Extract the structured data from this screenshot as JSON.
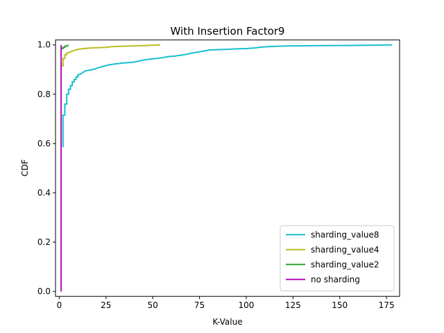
{
  "chart_data": {
    "type": "line",
    "title": "With Insertion Factor9",
    "xlabel": "K-Value",
    "ylabel": "CDF",
    "xlim": [
      -2,
      182
    ],
    "ylim": [
      -0.02,
      1.02
    ],
    "xticks": [
      0,
      25,
      50,
      75,
      100,
      125,
      150,
      175
    ],
    "yticks": [
      0.0,
      0.2,
      0.4,
      0.6,
      0.8,
      1.0
    ],
    "xtick_labels": [
      "0",
      "25",
      "50",
      "75",
      "100",
      "125",
      "150",
      "175"
    ],
    "ytick_labels": [
      "0.0",
      "0.2",
      "0.4",
      "0.6",
      "0.8",
      "1.0"
    ],
    "grid": false,
    "legend_position": "lower-right",
    "series": [
      {
        "name": "sharding_value8",
        "color": "#17becf",
        "points": [
          [
            2,
            0.585
          ],
          [
            2,
            0.715
          ],
          [
            3,
            0.715
          ],
          [
            3,
            0.76
          ],
          [
            4,
            0.76
          ],
          [
            4,
            0.8
          ],
          [
            5,
            0.8
          ],
          [
            5,
            0.82
          ],
          [
            6,
            0.82
          ],
          [
            6,
            0.835
          ],
          [
            7,
            0.835
          ],
          [
            7,
            0.85
          ],
          [
            8,
            0.85
          ],
          [
            8,
            0.86
          ],
          [
            9,
            0.86
          ],
          [
            9,
            0.87
          ],
          [
            10,
            0.87
          ],
          [
            10,
            0.88
          ],
          [
            11,
            0.88
          ],
          [
            12,
            0.885
          ],
          [
            14,
            0.895
          ],
          [
            18,
            0.9
          ],
          [
            22,
            0.91
          ],
          [
            26,
            0.918
          ],
          [
            30,
            0.923
          ],
          [
            35,
            0.927
          ],
          [
            40,
            0.93
          ],
          [
            44,
            0.937
          ],
          [
            48,
            0.942
          ],
          [
            52,
            0.945
          ],
          [
            55,
            0.948
          ],
          [
            58,
            0.952
          ],
          [
            62,
            0.955
          ],
          [
            65,
            0.958
          ],
          [
            68,
            0.962
          ],
          [
            72,
            0.968
          ],
          [
            75,
            0.972
          ],
          [
            78,
            0.976
          ],
          [
            80,
            0.979
          ],
          [
            85,
            0.981
          ],
          [
            90,
            0.982
          ],
          [
            95,
            0.984
          ],
          [
            100,
            0.985
          ],
          [
            105,
            0.988
          ],
          [
            108,
            0.991
          ],
          [
            112,
            0.993
          ],
          [
            118,
            0.995
          ],
          [
            125,
            0.996
          ],
          [
            140,
            0.997
          ],
          [
            160,
            0.998
          ],
          [
            178,
            1.0
          ]
        ]
      },
      {
        "name": "sharding_value4",
        "color": "#bcbd22",
        "points": [
          [
            1,
            0.83
          ],
          [
            1,
            0.915
          ],
          [
            2,
            0.915
          ],
          [
            2,
            0.945
          ],
          [
            3,
            0.945
          ],
          [
            3,
            0.96
          ],
          [
            4,
            0.96
          ],
          [
            4,
            0.968
          ],
          [
            5,
            0.968
          ],
          [
            6,
            0.972
          ],
          [
            7,
            0.975
          ],
          [
            8,
            0.978
          ],
          [
            10,
            0.982
          ],
          [
            13,
            0.985
          ],
          [
            18,
            0.988
          ],
          [
            25,
            0.99
          ],
          [
            28,
            0.993
          ],
          [
            35,
            0.995
          ],
          [
            45,
            0.997
          ],
          [
            54,
            1.0
          ]
        ]
      },
      {
        "name": "sharding_value2",
        "color": "#2ca02c",
        "points": [
          [
            1,
            0.985
          ],
          [
            2,
            0.985
          ],
          [
            2,
            0.99
          ],
          [
            3,
            0.99
          ],
          [
            3,
            0.995
          ],
          [
            4,
            0.995
          ],
          [
            5,
            1.0
          ]
        ]
      },
      {
        "name": "no sharding",
        "color": "#b50fb5",
        "points": [
          [
            1,
            0.0
          ],
          [
            1,
            1.0
          ]
        ]
      }
    ]
  }
}
